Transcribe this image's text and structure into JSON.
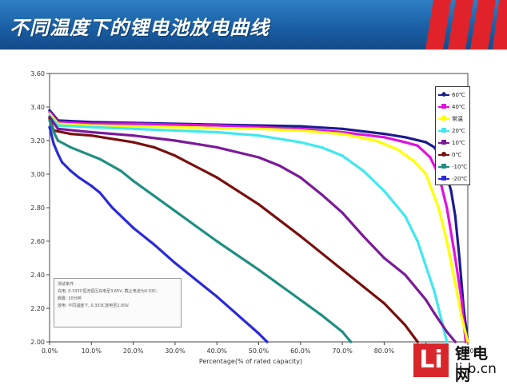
{
  "header": {
    "title": "不同温度下的锂电池放电曲线"
  },
  "logo": {
    "mark": "Li",
    "name": "锂电网",
    "url": "li-b.cn"
  },
  "note": {
    "lines": [
      "测试条件:",
      "充电: 0.333C恒流恒压充电至3.65V, 截止电流为0.03C;",
      "搁置: 10分钟",
      "放电: 不同温度下, 0.333C放电至2.00V."
    ]
  },
  "chart_data": {
    "type": "line",
    "title": "",
    "xlabel": "Percentage(% of rated capacity)",
    "ylabel": "",
    "xlim": [
      0,
      100
    ],
    "ylim": [
      2.0,
      3.6
    ],
    "x_ticks": [
      "0.0%",
      "10.0%",
      "20.0%",
      "30.0%",
      "40.0%",
      "50.0%",
      "60.0%",
      "70.0%",
      "80.0%",
      "90.0%",
      "100.0%"
    ],
    "y_ticks": [
      "2.00",
      "2.20",
      "2.40",
      "2.60",
      "2.80",
      "3.00",
      "3.20",
      "3.40",
      "3.60"
    ],
    "legend_position": "top-right",
    "series": [
      {
        "name": "60℃",
        "color": "#1b1b8f",
        "marker": "diamond",
        "x": [
          0,
          2,
          10,
          20,
          30,
          40,
          50,
          60,
          70,
          80,
          85,
          90,
          92,
          94,
          96,
          97,
          98,
          99,
          100
        ],
        "y": [
          3.38,
          3.32,
          3.31,
          3.305,
          3.3,
          3.295,
          3.29,
          3.285,
          3.27,
          3.24,
          3.22,
          3.19,
          3.16,
          3.08,
          2.9,
          2.75,
          2.5,
          2.2,
          2.0
        ]
      },
      {
        "name": "40℃",
        "color": "#e010e0",
        "marker": "square",
        "x": [
          0,
          2,
          10,
          20,
          30,
          40,
          50,
          60,
          70,
          80,
          85,
          88,
          91,
          93,
          95,
          97,
          98.5,
          99.5
        ],
        "y": [
          3.37,
          3.31,
          3.3,
          3.3,
          3.295,
          3.29,
          3.28,
          3.27,
          3.25,
          3.22,
          3.19,
          3.17,
          3.1,
          3.0,
          2.8,
          2.5,
          2.25,
          2.0
        ]
      },
      {
        "name": "常温",
        "color": "#ffff00",
        "marker": "triangle",
        "x": [
          0,
          2,
          10,
          20,
          30,
          40,
          50,
          60,
          70,
          78,
          83,
          87,
          90,
          93,
          95,
          97,
          98.5,
          100
        ],
        "y": [
          3.36,
          3.3,
          3.29,
          3.285,
          3.28,
          3.275,
          3.27,
          3.26,
          3.24,
          3.2,
          3.15,
          3.08,
          3.0,
          2.8,
          2.6,
          2.35,
          2.15,
          2.0
        ]
      },
      {
        "name": "20℃",
        "color": "#40e8f0",
        "marker": "x",
        "x": [
          0,
          2,
          10,
          20,
          30,
          40,
          50,
          60,
          65,
          70,
          75,
          80,
          85,
          88,
          90,
          92,
          94,
          95
        ],
        "y": [
          3.35,
          3.29,
          3.28,
          3.27,
          3.26,
          3.25,
          3.23,
          3.19,
          3.16,
          3.11,
          3.02,
          2.9,
          2.75,
          2.6,
          2.45,
          2.3,
          2.1,
          2.0
        ]
      },
      {
        "name": "10℃",
        "color": "#7a1a9a",
        "marker": "star",
        "x": [
          0,
          2,
          10,
          20,
          30,
          40,
          50,
          55,
          60,
          65,
          70,
          75,
          80,
          85,
          90,
          92,
          95,
          97
        ],
        "y": [
          3.34,
          3.27,
          3.25,
          3.23,
          3.2,
          3.16,
          3.1,
          3.05,
          2.98,
          2.88,
          2.77,
          2.63,
          2.5,
          2.4,
          2.25,
          2.17,
          2.06,
          2.0
        ]
      },
      {
        "name": "0℃",
        "color": "#7a0f0f",
        "marker": "circle",
        "x": [
          0,
          1,
          5,
          10,
          20,
          25,
          30,
          40,
          45,
          50,
          60,
          70,
          75,
          80,
          85,
          88
        ],
        "y": [
          3.33,
          3.26,
          3.24,
          3.23,
          3.19,
          3.16,
          3.11,
          2.98,
          2.9,
          2.82,
          2.63,
          2.43,
          2.33,
          2.23,
          2.1,
          2.0
        ]
      },
      {
        "name": "-10℃",
        "color": "#1f8f80",
        "marker": "plus",
        "x": [
          0,
          1,
          2,
          5,
          8,
          12,
          17,
          20,
          25,
          30,
          40,
          50,
          60,
          65,
          70,
          72
        ],
        "y": [
          3.32,
          3.25,
          3.2,
          3.16,
          3.13,
          3.09,
          3.02,
          2.96,
          2.87,
          2.78,
          2.6,
          2.43,
          2.25,
          2.16,
          2.06,
          2.0
        ]
      },
      {
        "name": "-20℃",
        "color": "#2a2ad6",
        "marker": "dash",
        "x": [
          0,
          1,
          2,
          3,
          5,
          7,
          10,
          12,
          15,
          20,
          25,
          30,
          35,
          40,
          45,
          50,
          52
        ],
        "y": [
          3.28,
          3.18,
          3.12,
          3.07,
          3.02,
          2.98,
          2.93,
          2.89,
          2.8,
          2.68,
          2.58,
          2.47,
          2.37,
          2.27,
          2.16,
          2.05,
          2.0
        ]
      }
    ]
  }
}
